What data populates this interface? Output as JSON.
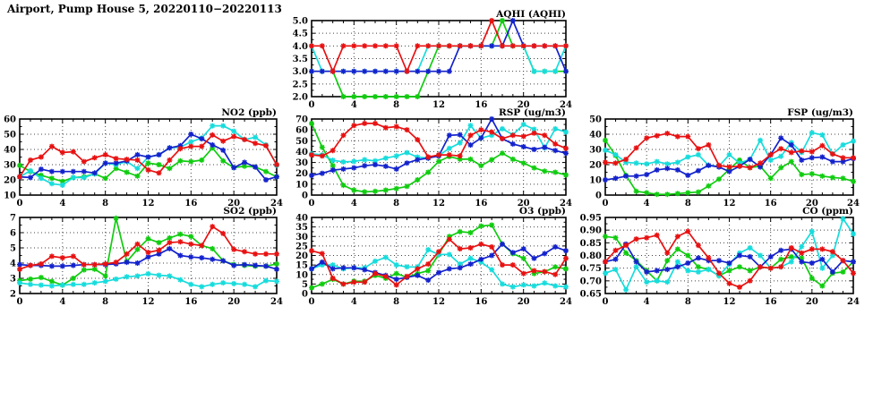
{
  "title": "Airport, Pump House 5, 20220110−20220113",
  "colors": {
    "red": "#e81111",
    "blue": "#1322cc",
    "green": "#10cc10",
    "cyan": "#17dcdc"
  },
  "hours": [
    0,
    1,
    2,
    3,
    4,
    5,
    6,
    7,
    8,
    9,
    10,
    11,
    12,
    13,
    14,
    15,
    16,
    17,
    18,
    19,
    20,
    21,
    22,
    23,
    24
  ],
  "chart_data": [
    {
      "id": "aqhi",
      "type": "line",
      "title": "AQHI (AQHI)",
      "xlabel": "",
      "ylabel": "",
      "x_range": [
        0,
        24
      ],
      "x_ticks": [
        0,
        4,
        8,
        12,
        16,
        20,
        24
      ],
      "y_range": [
        2,
        5
      ],
      "y_ticks": [
        2,
        2.5,
        3,
        3.5,
        4,
        4.5,
        5
      ],
      "y_decimals": 1,
      "series": [
        {
          "name": "green",
          "values": [
            3,
            3,
            3,
            2,
            2,
            2,
            2,
            2,
            2,
            2,
            2,
            3,
            4,
            4,
            4,
            4,
            4,
            4,
            5,
            4,
            4,
            3,
            3,
            3,
            3
          ]
        },
        {
          "name": "cyan",
          "values": [
            4,
            3,
            3,
            3,
            3,
            3,
            3,
            3,
            3,
            3,
            3,
            4,
            4,
            4,
            4,
            4,
            4,
            4,
            4,
            4,
            4,
            3,
            3,
            3,
            4
          ]
        },
        {
          "name": "blue",
          "values": [
            3,
            3,
            3,
            3,
            3,
            3,
            3,
            3,
            3,
            3,
            3,
            3,
            3,
            3,
            4,
            4,
            4,
            4,
            4,
            5,
            4,
            4,
            4,
            4,
            3
          ]
        },
        {
          "name": "red",
          "values": [
            4,
            4,
            3,
            4,
            4,
            4,
            4,
            4,
            4,
            3,
            4,
            4,
            4,
            4,
            4,
            4,
            4,
            5,
            4,
            4,
            4,
            4,
            4,
            4,
            4
          ]
        }
      ]
    },
    {
      "id": "no2",
      "type": "line",
      "title": "NO2 (ppb)",
      "x_range": [
        0,
        24
      ],
      "x_ticks": [
        0,
        4,
        8,
        12,
        16,
        20,
        24
      ],
      "y_range": [
        10,
        60
      ],
      "y_ticks": [
        10,
        20,
        30,
        40,
        50,
        60
      ],
      "y_decimals": 0,
      "series": [
        {
          "name": "green",
          "values": [
            29.5,
            25.5,
            23,
            21,
            19,
            21.5,
            22,
            24,
            21,
            27.5,
            25,
            22.5,
            31,
            30,
            27.5,
            32.5,
            32,
            33,
            41,
            32.5,
            28,
            29,
            28.5,
            25.5,
            22
          ]
        },
        {
          "name": "cyan",
          "values": [
            22,
            26,
            21,
            17.5,
            16.5,
            21.5,
            21.5,
            24,
            31,
            30,
            32,
            27.5,
            35,
            36.5,
            41,
            41.5,
            45,
            47.5,
            55.5,
            55.5,
            52,
            46.5,
            48,
            43,
            29.5
          ]
        },
        {
          "name": "blue",
          "values": [
            22,
            21.5,
            27,
            25.5,
            25.5,
            25.5,
            25.5,
            24.5,
            31,
            31,
            32.5,
            36.5,
            35,
            36.5,
            41,
            42.5,
            50,
            47,
            43,
            39.5,
            28,
            31.5,
            28.5,
            20,
            22
          ]
        },
        {
          "name": "red",
          "values": [
            22,
            33,
            35,
            42,
            38,
            38.5,
            32,
            34.5,
            36.5,
            34,
            33.5,
            33,
            26.5,
            24.5,
            33,
            40.5,
            42,
            42,
            49.5,
            45.5,
            48.5,
            46.5,
            44,
            42.5,
            30
          ]
        }
      ]
    },
    {
      "id": "rsp",
      "type": "line",
      "title": "RSP (ug/m3)",
      "x_range": [
        0,
        24
      ],
      "x_ticks": [
        0,
        4,
        8,
        12,
        16,
        20,
        24
      ],
      "y_range": [
        0,
        70
      ],
      "y_ticks": [
        0,
        10,
        20,
        30,
        40,
        50,
        60,
        70
      ],
      "y_decimals": 0,
      "series": [
        {
          "name": "green",
          "values": [
            66,
            44,
            27,
            9,
            4.5,
            3,
            3.5,
            4.5,
            6,
            8,
            14,
            21,
            31,
            35.5,
            33,
            33,
            27,
            32.5,
            38.5,
            33,
            29.5,
            25,
            22,
            21,
            18.5
          ]
        },
        {
          "name": "cyan",
          "values": [
            38,
            37,
            32,
            30.5,
            31,
            32.5,
            31.5,
            34,
            36,
            39,
            35,
            34,
            36.5,
            43,
            48,
            64,
            52.5,
            55,
            61,
            55.5,
            65,
            60.5,
            43.5,
            61,
            58
          ]
        },
        {
          "name": "blue",
          "values": [
            18,
            20,
            23,
            24,
            25,
            27,
            28,
            26.5,
            24,
            29.5,
            32.5,
            34,
            36,
            55,
            55.5,
            46,
            52.5,
            70,
            52,
            47,
            44.5,
            42,
            44,
            41,
            38.5
          ]
        },
        {
          "name": "red",
          "values": [
            37,
            36,
            41,
            55,
            64,
            66,
            66,
            62,
            63,
            60,
            51,
            35,
            37,
            37,
            36,
            55,
            60,
            58,
            52,
            55,
            54,
            57,
            55,
            47,
            43
          ]
        }
      ]
    },
    {
      "id": "fsp",
      "type": "line",
      "title": "FSP (ug/m3)",
      "x_range": [
        0,
        24
      ],
      "x_ticks": [
        0,
        4,
        8,
        12,
        16,
        20,
        24
      ],
      "y_range": [
        0,
        50
      ],
      "y_ticks": [
        0,
        10,
        20,
        30,
        40,
        50
      ],
      "y_decimals": 0,
      "series": [
        {
          "name": "green",
          "values": [
            36,
            26,
            13,
            2.5,
            1.5,
            0.5,
            0.5,
            1,
            1.5,
            2,
            6,
            10.5,
            17,
            23,
            18,
            19,
            11,
            18,
            22,
            13.5,
            14,
            12.5,
            11.5,
            11,
            9
          ]
        },
        {
          "name": "cyan",
          "values": [
            29.5,
            26.5,
            21.5,
            21,
            20.5,
            22,
            20.5,
            21.5,
            25,
            26.5,
            19.5,
            19,
            26.5,
            21,
            23.5,
            36,
            23,
            25.5,
            34.5,
            28,
            41,
            39.5,
            27,
            33,
            35.5
          ]
        },
        {
          "name": "blue",
          "values": [
            10,
            11,
            12.5,
            12.5,
            13.5,
            16.5,
            17.5,
            16.5,
            13,
            16,
            19.5,
            18.5,
            15.5,
            19,
            23.5,
            18.5,
            26.5,
            37.5,
            33,
            23,
            24.5,
            25,
            22,
            22,
            24
          ]
        },
        {
          "name": "red",
          "values": [
            21.5,
            21,
            23.5,
            31,
            37.5,
            39,
            40.5,
            38.5,
            38.5,
            30.5,
            33,
            19.5,
            18.5,
            19,
            18,
            21,
            26.5,
            30.5,
            28,
            29,
            28.5,
            32.5,
            27,
            24.5,
            24.5
          ]
        }
      ]
    },
    {
      "id": "so2",
      "type": "line",
      "title": "SO2 (ppb)",
      "x_range": [
        0,
        24
      ],
      "x_ticks": [
        0,
        4,
        8,
        12,
        16,
        20,
        24
      ],
      "y_range": [
        2,
        7
      ],
      "y_ticks": [
        2,
        3,
        4,
        5,
        6,
        7
      ],
      "y_decimals": 0,
      "series": [
        {
          "name": "green",
          "values": [
            2.85,
            2.95,
            3.05,
            2.8,
            2.55,
            3.0,
            3.55,
            3.6,
            3.15,
            6.95,
            4.1,
            4.9,
            5.6,
            5.35,
            5.65,
            5.9,
            5.75,
            5.15,
            4.95,
            4.15,
            3.9,
            3.85,
            3.8,
            3.8,
            3.95
          ]
        },
        {
          "name": "cyan",
          "values": [
            2.7,
            2.6,
            2.55,
            2.5,
            2.55,
            2.6,
            2.6,
            2.7,
            2.8,
            2.95,
            3.1,
            3.15,
            3.3,
            3.2,
            3.15,
            2.9,
            2.6,
            2.45,
            2.6,
            2.7,
            2.65,
            2.6,
            2.45,
            2.85,
            2.8
          ]
        },
        {
          "name": "blue",
          "values": [
            3.9,
            3.85,
            3.85,
            3.8,
            3.8,
            3.85,
            3.9,
            3.9,
            3.9,
            3.95,
            4.05,
            4.0,
            4.4,
            4.6,
            4.95,
            4.5,
            4.4,
            4.35,
            4.25,
            4.15,
            3.85,
            3.9,
            3.85,
            3.8,
            3.6
          ]
        },
        {
          "name": "red",
          "values": [
            3.6,
            3.85,
            3.95,
            4.45,
            4.35,
            4.45,
            3.9,
            3.9,
            3.95,
            4.05,
            4.6,
            5.25,
            4.7,
            4.85,
            5.35,
            5.4,
            5.25,
            5.15,
            6.4,
            5.95,
            4.9,
            4.75,
            4.6,
            4.6,
            4.6
          ]
        }
      ]
    },
    {
      "id": "o3",
      "type": "line",
      "title": "O3 (ppb)",
      "x_range": [
        0,
        24
      ],
      "x_ticks": [
        0,
        4,
        8,
        12,
        16,
        20,
        24
      ],
      "y_range": [
        0,
        40
      ],
      "y_ticks": [
        0,
        5,
        10,
        15,
        20,
        25,
        30,
        35,
        40
      ],
      "y_decimals": 0,
      "series": [
        {
          "name": "green",
          "values": [
            3,
            5,
            7.5,
            5,
            6.5,
            6.5,
            9.5,
            8,
            10.5,
            8.5,
            10.5,
            12,
            20.5,
            30,
            32.5,
            32,
            35.5,
            36,
            26,
            21,
            18.5,
            10.5,
            11.5,
            14,
            13
          ]
        },
        {
          "name": "cyan",
          "values": [
            13,
            15,
            15,
            13,
            13.5,
            13.5,
            17,
            19,
            15,
            14,
            14,
            23,
            20.5,
            20.5,
            15.5,
            18.5,
            16.5,
            12.5,
            5,
            3.5,
            4.5,
            4,
            5.5,
            4,
            3.5
          ]
        },
        {
          "name": "blue",
          "values": [
            13,
            16.5,
            13,
            13.5,
            13.5,
            12.5,
            11,
            9.5,
            7.5,
            8.5,
            9.5,
            7,
            11,
            13,
            13.5,
            15.5,
            18,
            20,
            26,
            21.5,
            23.5,
            18.5,
            21,
            24.5,
            22.5
          ]
        },
        {
          "name": "red",
          "values": [
            22.5,
            21,
            8,
            5,
            6,
            6,
            10.5,
            9,
            4.5,
            9,
            13,
            15.5,
            22,
            28.5,
            23.5,
            24,
            26,
            24.5,
            15,
            15,
            10.5,
            12,
            11.5,
            10,
            18.5
          ]
        }
      ]
    },
    {
      "id": "co",
      "type": "line",
      "title": "CO (ppm)",
      "x_range": [
        0,
        24
      ],
      "x_ticks": [
        0,
        4,
        8,
        12,
        16,
        20,
        24
      ],
      "y_range": [
        0.65,
        0.95
      ],
      "y_ticks": [
        0.65,
        0.7,
        0.75,
        0.8,
        0.85,
        0.9,
        0.95
      ],
      "y_decimals": 2,
      "series": [
        {
          "name": "green",
          "values": [
            0.875,
            0.87,
            0.81,
            0.78,
            0.74,
            0.7,
            0.78,
            0.825,
            0.8,
            0.755,
            0.745,
            0.72,
            0.74,
            0.755,
            0.74,
            0.755,
            0.75,
            0.785,
            0.795,
            0.79,
            0.71,
            0.68,
            0.73,
            0.735,
            0.775
          ]
        },
        {
          "name": "cyan",
          "values": [
            0.73,
            0.745,
            0.665,
            0.755,
            0.695,
            0.7,
            0.695,
            0.775,
            0.74,
            0.735,
            0.745,
            0.72,
            0.765,
            0.81,
            0.83,
            0.8,
            0.75,
            0.755,
            0.775,
            0.835,
            0.895,
            0.75,
            0.8,
            0.945,
            0.885
          ]
        },
        {
          "name": "blue",
          "values": [
            0.775,
            0.785,
            0.845,
            0.775,
            0.735,
            0.74,
            0.745,
            0.755,
            0.77,
            0.79,
            0.78,
            0.78,
            0.77,
            0.8,
            0.795,
            0.755,
            0.795,
            0.82,
            0.825,
            0.775,
            0.77,
            0.785,
            0.735,
            0.78,
            0.775
          ]
        },
        {
          "name": "red",
          "values": [
            0.775,
            0.82,
            0.84,
            0.865,
            0.87,
            0.88,
            0.81,
            0.875,
            0.895,
            0.84,
            0.79,
            0.73,
            0.69,
            0.675,
            0.7,
            0.755,
            0.75,
            0.755,
            0.83,
            0.81,
            0.825,
            0.825,
            0.815,
            0.78,
            0.73
          ]
        }
      ]
    }
  ]
}
